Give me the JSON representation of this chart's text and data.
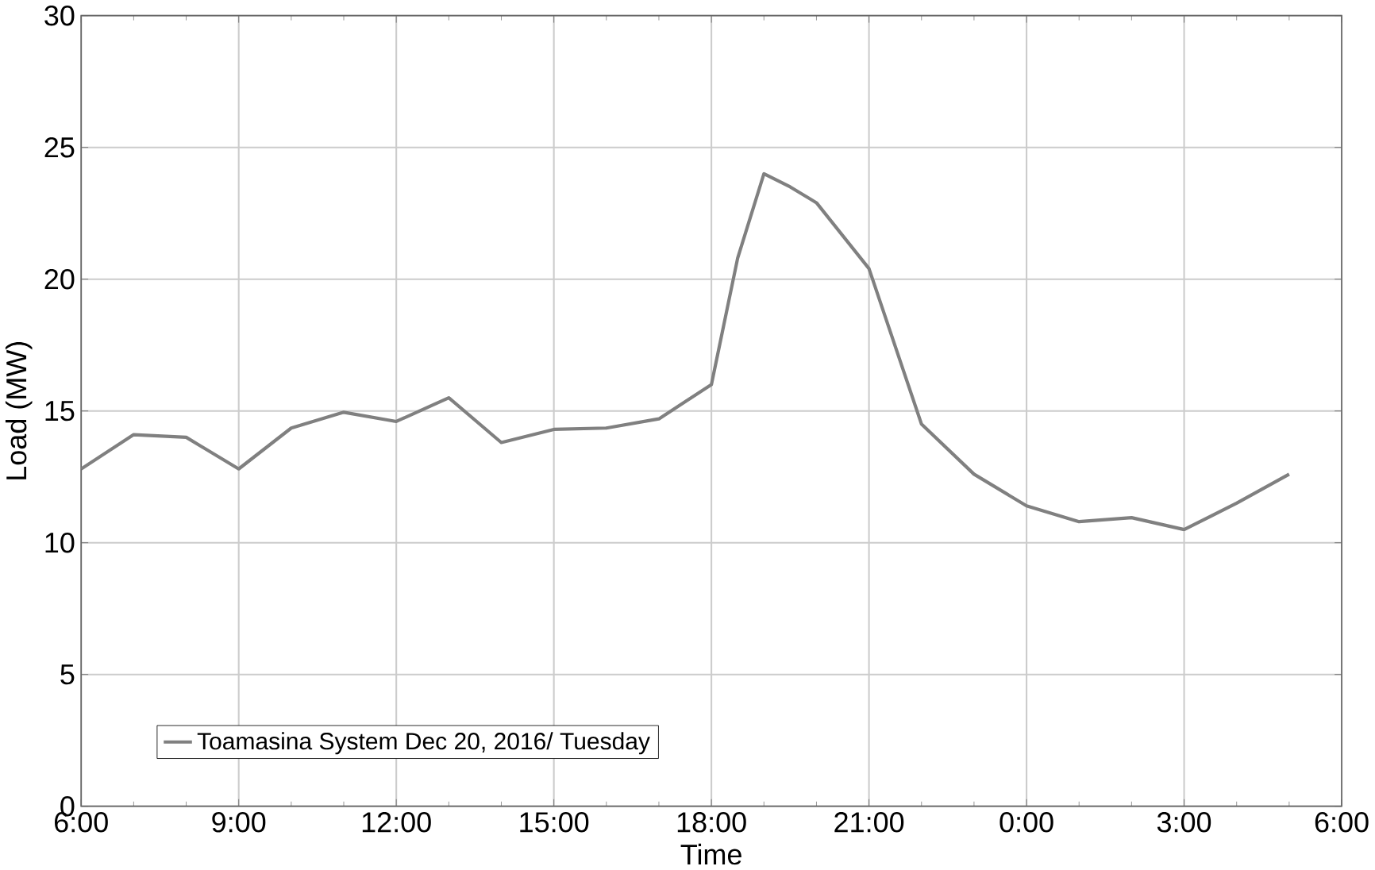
{
  "chart_data": {
    "type": "line",
    "xlabel": "Time",
    "ylabel": "Load (MW)",
    "x": [
      "2016-12-20T06:00",
      "2016-12-20T07:00",
      "2016-12-20T08:00",
      "2016-12-20T09:00",
      "2016-12-20T10:00",
      "2016-12-20T11:00",
      "2016-12-20T12:00",
      "2016-12-20T13:00",
      "2016-12-20T14:00",
      "2016-12-20T15:00",
      "2016-12-20T16:00",
      "2016-12-20T17:00",
      "2016-12-20T18:00",
      "2016-12-20T18:30",
      "2016-12-20T19:00",
      "2016-12-20T19:30",
      "2016-12-20T20:00",
      "2016-12-20T21:00",
      "2016-12-20T22:00",
      "2016-12-20T23:00",
      "2016-12-21T00:00",
      "2016-12-21T01:00",
      "2016-12-21T02:00",
      "2016-12-21T03:00",
      "2016-12-21T04:00",
      "2016-12-21T05:00"
    ],
    "series": [
      {
        "name": "Toamasina System Dec 20, 2016/ Tuesday",
        "color": "#808080",
        "values": [
          12.8,
          14.1,
          14.0,
          12.8,
          14.35,
          14.95,
          14.6,
          15.5,
          13.8,
          14.3,
          14.35,
          14.7,
          16.0,
          20.8,
          24.0,
          23.5,
          22.9,
          20.4,
          14.5,
          12.6,
          11.4,
          10.8,
          10.95,
          10.5,
          11.5,
          12.6
        ]
      }
    ],
    "xlim": [
      "2016-12-20T06:00",
      "2016-12-21T06:00"
    ],
    "ylim": [
      0,
      30
    ],
    "xticks": [
      {
        "value": "2016-12-20T06:00",
        "label": "6:00"
      },
      {
        "value": "2016-12-20T09:00",
        "label": "9:00"
      },
      {
        "value": "2016-12-20T12:00",
        "label": "12:00"
      },
      {
        "value": "2016-12-20T15:00",
        "label": "15:00"
      },
      {
        "value": "2016-12-20T18:00",
        "label": "18:00"
      },
      {
        "value": "2016-12-20T21:00",
        "label": "21:00"
      },
      {
        "value": "2016-12-21T00:00",
        "label": "0:00"
      },
      {
        "value": "2016-12-21T03:00",
        "label": "3:00"
      },
      {
        "value": "2016-12-21T06:00",
        "label": "6:00"
      }
    ],
    "yticks": [
      0,
      5,
      10,
      15,
      20,
      25,
      30
    ],
    "grid": true,
    "legend": "bottom left",
    "marker": "none",
    "line_style": "solid"
  }
}
